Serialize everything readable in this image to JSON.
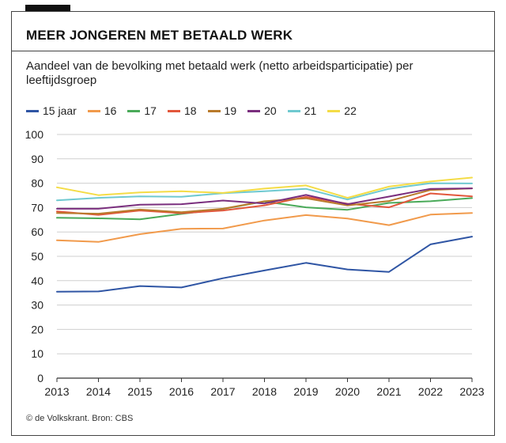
{
  "title": "MEER JONGEREN MET BETAALD WERK",
  "subtitle": "Aandeel van de bevolking met betaald werk (netto arbeidsparticipatie) per leeftijdsgroep",
  "source": "© de Volkskrant. Bron: CBS",
  "chart_data": {
    "type": "line",
    "title": "MEER JONGEREN MET BETAALD WERK",
    "x": [
      2013,
      2014,
      2015,
      2016,
      2017,
      2018,
      2019,
      2020,
      2021,
      2022,
      2023
    ],
    "x_tick_labels": [
      "2013",
      "2014",
      "2015",
      "2016",
      "2017",
      "2018",
      "2019",
      "2020",
      "2021",
      "2022",
      "2023"
    ],
    "y_ticks": [
      0,
      10,
      20,
      30,
      40,
      50,
      60,
      70,
      80,
      90,
      100
    ],
    "y_tick_labels": [
      "0",
      "10",
      "20",
      "30",
      "40",
      "50",
      "60",
      "70",
      "80",
      "90",
      "100"
    ],
    "ylim": [
      0,
      100
    ],
    "grid": "horizontal",
    "legend_position": "top",
    "series": [
      {
        "name": "15 jaar",
        "color": "#2f55a4",
        "values": [
          35.5,
          35.6,
          37.8,
          37.2,
          41,
          44.2,
          47.3,
          44.6,
          43.6,
          54.9,
          58.1
        ]
      },
      {
        "name": "16",
        "color": "#f19a4b",
        "values": [
          56.6,
          55.9,
          59.1,
          61.3,
          61.4,
          64.7,
          66.9,
          65.5,
          62.8,
          67.1,
          67.8
        ]
      },
      {
        "name": "17",
        "color": "#4aaa59",
        "values": [
          65.8,
          65.6,
          65.2,
          67.4,
          69.4,
          72.5,
          70.1,
          69.1,
          71.9,
          72.6,
          73.9
        ]
      },
      {
        "name": "18",
        "color": "#e2573c",
        "values": [
          68.4,
          67,
          68.8,
          67.7,
          68.8,
          70.9,
          74.4,
          71.6,
          70.1,
          75.8,
          74.6
        ]
      },
      {
        "name": "19",
        "color": "#b97a2b",
        "values": [
          67.8,
          67.5,
          69.2,
          68.1,
          69.5,
          72.6,
          73.8,
          70.9,
          72.7,
          77.2,
          77.9
        ]
      },
      {
        "name": "20",
        "color": "#7a2f7e",
        "values": [
          69.5,
          69.5,
          71.2,
          71.4,
          72.9,
          71.7,
          75.2,
          71.4,
          74.5,
          77.7,
          77.9
        ]
      },
      {
        "name": "21",
        "color": "#6fc9d0",
        "values": [
          73,
          74,
          74.6,
          74.4,
          75.9,
          76.7,
          77.7,
          73.3,
          77.7,
          80,
          79.9
        ]
      },
      {
        "name": "22",
        "color": "#f4dc46",
        "values": [
          78.3,
          75.1,
          76.2,
          76.7,
          76,
          77.8,
          79.1,
          74,
          78.6,
          80.7,
          82.3
        ]
      }
    ]
  }
}
